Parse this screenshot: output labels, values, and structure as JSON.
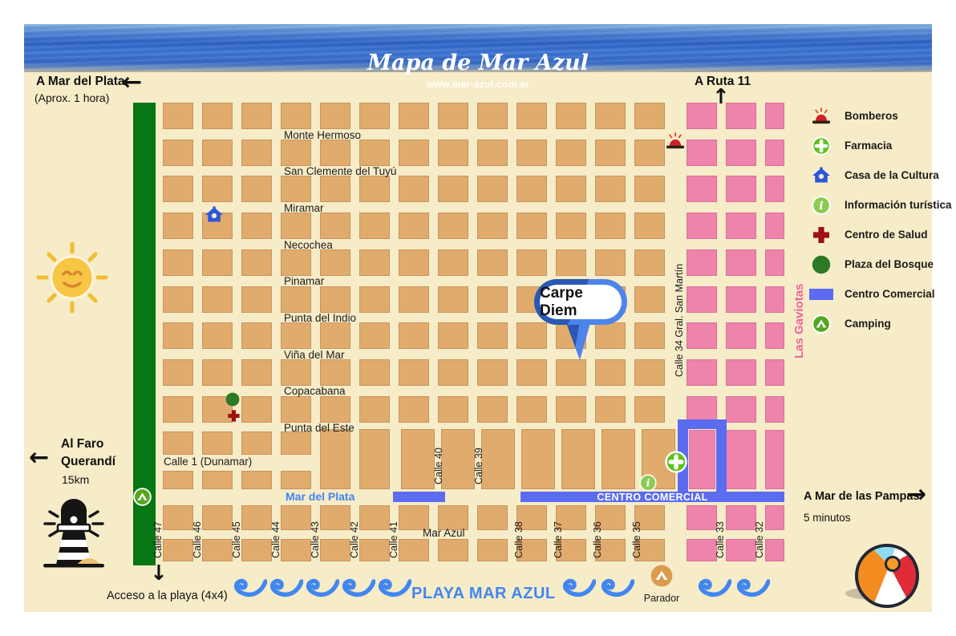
{
  "header": {
    "title": "Mapa de Mar Azul",
    "url": "www.mar-azul.com.ar"
  },
  "directions": {
    "mar_del_plata_label": "A Mar del Plata",
    "mar_del_plata_sub": "(Aprox. 1 hora)",
    "ruta_label": "A Ruta 11",
    "faro_line1": "Al Faro",
    "faro_line2": "Querandí",
    "faro_sub": "15km",
    "pampas_label": "A Mar de las Pampas",
    "pampas_sub": "5 minutos",
    "acceso_label": "Acceso a la playa (4x4)"
  },
  "streets": {
    "horizontal": [
      "Monte Hermoso",
      "San Clemente del Tuyú",
      "Miramar",
      "Necochea",
      "Pinamar",
      "Punta del Indio",
      "Viña del Mar",
      "Copacabana",
      "Punta del Este"
    ],
    "dunamar": "Calle 1 (Dunamar)",
    "mar_del_plata": "Mar del Plata",
    "mar_azul": "Mar Azul",
    "vertical_bottom": [
      "Calle 47",
      "Calle 46",
      "Calle 45",
      "Calle 44",
      "Calle 43",
      "Calle 42",
      "Calle 41",
      "Calle 38",
      "Calle 37",
      "Calle 36",
      "Calle 35",
      "Calle 33",
      "Calle 32"
    ],
    "calle_40": "Calle 40",
    "calle_39": "Calle 39",
    "san_martin": "Calle 34 Gral. San Martín",
    "las_gaviotas": "Las Gaviotas",
    "centro_comercial": "CENTRO COMERCIAL"
  },
  "legend": {
    "items": [
      {
        "icon": "bomberos",
        "label": "Bomberos"
      },
      {
        "icon": "farmacia",
        "label": "Farmacia"
      },
      {
        "icon": "casa-cultura",
        "label": "Casa de la Cultura"
      },
      {
        "icon": "info-turistica",
        "label": "Información turística"
      },
      {
        "icon": "centro-salud",
        "label": "Centro de Salud"
      },
      {
        "icon": "plaza-bosque",
        "label": "Plaza del Bosque"
      },
      {
        "icon": "centro-comercial",
        "label": "Centro Comercial"
      },
      {
        "icon": "camping",
        "label": "Camping"
      }
    ]
  },
  "callout": {
    "label": "Carpe Diem"
  },
  "beach": {
    "playa_label": "PLAYA MAR AZUL",
    "parador_label": "Parador"
  },
  "colors": {
    "map_bg": "#f6ecc8",
    "block_tan": "#e1ab6e",
    "block_pink": "#ee83ab",
    "beach_green": "#077614",
    "road_blue": "#5b6bf2",
    "sea_blue": "#4286f0",
    "gaviotas_pink": "#f0639c"
  }
}
